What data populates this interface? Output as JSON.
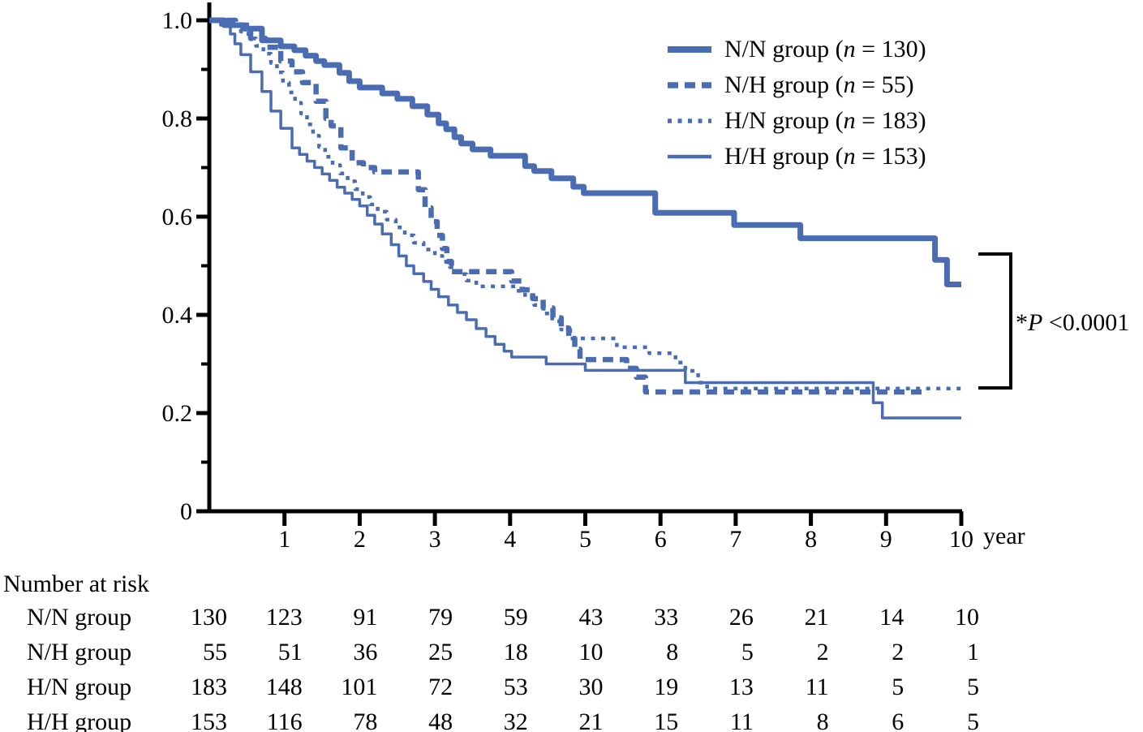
{
  "colors": {
    "curve_blue": "#4a6cb3",
    "axis_black": "#000000",
    "text_black": "#000000"
  },
  "chart_data": {
    "type": "line",
    "subtype": "kaplan-meier-step",
    "title": "",
    "xlabel": "year",
    "ylabel": "",
    "xlim": [
      0,
      10
    ],
    "ylim": [
      0,
      1.0
    ],
    "grid": false,
    "x_ticks": [
      1,
      2,
      3,
      4,
      5,
      6,
      7,
      8,
      9,
      10
    ],
    "y_ticks": [
      {
        "v": 1.0,
        "label": "1.0"
      },
      {
        "v": 0.8,
        "label": "0.8"
      },
      {
        "v": 0.6,
        "label": "0.6"
      },
      {
        "v": 0.4,
        "label": "0.4"
      },
      {
        "v": 0.2,
        "label": "0.2"
      },
      {
        "v": 0.0,
        "label": "0"
      }
    ],
    "y_minor_ticks": [
      0.1,
      0.3,
      0.5,
      0.7,
      0.9
    ],
    "legend_position": "top-right",
    "series": [
      {
        "label": "N/N group",
        "n": 130,
        "style": "solid",
        "width": 7,
        "dash": null,
        "points": [
          [
            0,
            1.0
          ],
          [
            0.2,
            0.99
          ],
          [
            0.45,
            0.983
          ],
          [
            0.7,
            0.959
          ],
          [
            0.95,
            0.947
          ],
          [
            1.13,
            0.939
          ],
          [
            1.28,
            0.928
          ],
          [
            1.42,
            0.917
          ],
          [
            1.53,
            0.909
          ],
          [
            1.73,
            0.893
          ],
          [
            1.86,
            0.876
          ],
          [
            2.0,
            0.863
          ],
          [
            2.3,
            0.851
          ],
          [
            2.5,
            0.84
          ],
          [
            2.7,
            0.825
          ],
          [
            2.9,
            0.808
          ],
          [
            3.05,
            0.79
          ],
          [
            3.15,
            0.778
          ],
          [
            3.26,
            0.762
          ],
          [
            3.35,
            0.749
          ],
          [
            3.5,
            0.737
          ],
          [
            3.74,
            0.724
          ],
          [
            4.2,
            0.703
          ],
          [
            4.32,
            0.693
          ],
          [
            4.55,
            0.678
          ],
          [
            4.84,
            0.661
          ],
          [
            4.98,
            0.648
          ],
          [
            5.93,
            0.608
          ],
          [
            6.98,
            0.583
          ],
          [
            7.86,
            0.556
          ],
          [
            9.65,
            0.512
          ],
          [
            9.81,
            0.462
          ],
          [
            10,
            0.462
          ]
        ]
      },
      {
        "label": "N/H group",
        "n": 55,
        "style": "dashed",
        "width": 6.5,
        "dash": [
          13,
          8
        ],
        "points": [
          [
            0,
            1.0
          ],
          [
            0.35,
            0.99
          ],
          [
            0.55,
            0.963
          ],
          [
            0.75,
            0.945
          ],
          [
            0.95,
            0.917
          ],
          [
            1.1,
            0.895
          ],
          [
            1.24,
            0.873
          ],
          [
            1.42,
            0.835
          ],
          [
            1.55,
            0.8
          ],
          [
            1.62,
            0.785
          ],
          [
            1.75,
            0.74
          ],
          [
            1.9,
            0.71
          ],
          [
            2.05,
            0.7
          ],
          [
            2.2,
            0.691
          ],
          [
            2.78,
            0.655
          ],
          [
            2.87,
            0.618
          ],
          [
            2.95,
            0.59
          ],
          [
            3.03,
            0.562
          ],
          [
            3.1,
            0.535
          ],
          [
            3.16,
            0.509
          ],
          [
            3.22,
            0.488
          ],
          [
            4.02,
            0.469
          ],
          [
            4.16,
            0.451
          ],
          [
            4.3,
            0.433
          ],
          [
            4.44,
            0.414
          ],
          [
            4.57,
            0.394
          ],
          [
            4.68,
            0.373
          ],
          [
            4.78,
            0.352
          ],
          [
            4.86,
            0.33
          ],
          [
            4.93,
            0.309
          ],
          [
            5.55,
            0.291
          ],
          [
            5.68,
            0.273
          ],
          [
            5.8,
            0.243
          ],
          [
            9.55,
            0.243
          ]
        ]
      },
      {
        "label": "H/N group",
        "n": 183,
        "style": "dotted",
        "width": 4.5,
        "dash": [
          5,
          7.5
        ],
        "points": [
          [
            0,
            1.0
          ],
          [
            0.3,
            0.99
          ],
          [
            0.42,
            0.977
          ],
          [
            0.52,
            0.963
          ],
          [
            0.62,
            0.948
          ],
          [
            0.72,
            0.932
          ],
          [
            0.82,
            0.913
          ],
          [
            0.9,
            0.894
          ],
          [
            0.98,
            0.873
          ],
          [
            1.06,
            0.853
          ],
          [
            1.14,
            0.832
          ],
          [
            1.22,
            0.81
          ],
          [
            1.3,
            0.788
          ],
          [
            1.38,
            0.765
          ],
          [
            1.46,
            0.742
          ],
          [
            1.54,
            0.722
          ],
          [
            1.64,
            0.705
          ],
          [
            1.74,
            0.688
          ],
          [
            1.84,
            0.672
          ],
          [
            1.94,
            0.656
          ],
          [
            2.04,
            0.64
          ],
          [
            2.14,
            0.625
          ],
          [
            2.24,
            0.61
          ],
          [
            2.36,
            0.594
          ],
          [
            2.48,
            0.578
          ],
          [
            2.6,
            0.562
          ],
          [
            2.72,
            0.547
          ],
          [
            2.85,
            0.533
          ],
          [
            3.0,
            0.52
          ],
          [
            3.1,
            0.508
          ],
          [
            3.2,
            0.497
          ],
          [
            3.3,
            0.483
          ],
          [
            3.42,
            0.47
          ],
          [
            3.55,
            0.458
          ],
          [
            4.07,
            0.449
          ],
          [
            4.2,
            0.435
          ],
          [
            4.32,
            0.42
          ],
          [
            4.44,
            0.403
          ],
          [
            4.56,
            0.387
          ],
          [
            4.68,
            0.37
          ],
          [
            4.8,
            0.352
          ],
          [
            5.42,
            0.334
          ],
          [
            5.85,
            0.322
          ],
          [
            6.2,
            0.303
          ],
          [
            6.33,
            0.286
          ],
          [
            6.5,
            0.262
          ],
          [
            6.62,
            0.25
          ],
          [
            10.04,
            0.25
          ]
        ]
      },
      {
        "label": "H/H group",
        "n": 153,
        "style": "solid",
        "width": 3.5,
        "dash": null,
        "points": [
          [
            0,
            1.0
          ],
          [
            0.15,
            0.99
          ],
          [
            0.28,
            0.972
          ],
          [
            0.34,
            0.952
          ],
          [
            0.42,
            0.93
          ],
          [
            0.55,
            0.895
          ],
          [
            0.7,
            0.855
          ],
          [
            0.82,
            0.815
          ],
          [
            0.95,
            0.78
          ],
          [
            1.1,
            0.74
          ],
          [
            1.2,
            0.727
          ],
          [
            1.3,
            0.713
          ],
          [
            1.4,
            0.7
          ],
          [
            1.5,
            0.687
          ],
          [
            1.6,
            0.674
          ],
          [
            1.7,
            0.66
          ],
          [
            1.8,
            0.648
          ],
          [
            1.9,
            0.635
          ],
          [
            2.0,
            0.622
          ],
          [
            2.1,
            0.603
          ],
          [
            2.2,
            0.585
          ],
          [
            2.3,
            0.565
          ],
          [
            2.42,
            0.543
          ],
          [
            2.52,
            0.52
          ],
          [
            2.62,
            0.5
          ],
          [
            2.72,
            0.484
          ],
          [
            2.85,
            0.468
          ],
          [
            2.95,
            0.452
          ],
          [
            3.05,
            0.437
          ],
          [
            3.18,
            0.42
          ],
          [
            3.3,
            0.405
          ],
          [
            3.42,
            0.39
          ],
          [
            3.55,
            0.372
          ],
          [
            3.68,
            0.356
          ],
          [
            3.8,
            0.34
          ],
          [
            3.92,
            0.326
          ],
          [
            4.02,
            0.314
          ],
          [
            4.48,
            0.3
          ],
          [
            5.0,
            0.287
          ],
          [
            6.33,
            0.262
          ],
          [
            8.83,
            0.221
          ],
          [
            8.95,
            0.19
          ],
          [
            10,
            0.19
          ]
        ]
      }
    ],
    "annotation": {
      "text": "*P <0.0001",
      "star": "*",
      "p_symbol": "P",
      "value": " <0.0001"
    }
  },
  "legend": {
    "item_format": "{label} (n = {n})"
  },
  "risk_table": {
    "title": "Number at risk",
    "time_points": [
      0,
      1,
      2,
      3,
      4,
      5,
      6,
      7,
      8,
      9,
      10
    ],
    "rows": [
      {
        "label": "N/N group",
        "values": [
          130,
          123,
          91,
          79,
          59,
          43,
          33,
          26,
          21,
          14,
          10
        ]
      },
      {
        "label": "N/H group",
        "values": [
          55,
          51,
          36,
          25,
          18,
          10,
          8,
          5,
          2,
          2,
          1
        ]
      },
      {
        "label": "H/N group",
        "values": [
          183,
          148,
          101,
          72,
          53,
          30,
          19,
          13,
          11,
          5,
          5
        ]
      },
      {
        "label": "H/H group",
        "values": [
          153,
          116,
          78,
          48,
          32,
          21,
          15,
          11,
          8,
          6,
          5
        ]
      }
    ]
  }
}
